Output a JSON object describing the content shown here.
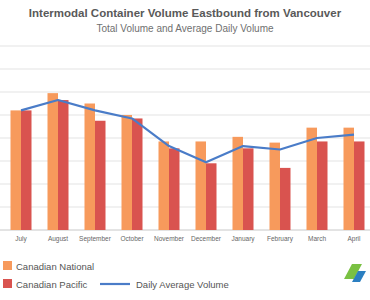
{
  "chart_data": {
    "type": "bar",
    "title": "Intermodal Container Volume Eastbound from Vancouver",
    "subtitle": "Total Volume and Average Daily Volume",
    "categories": [
      "July",
      "August",
      "September",
      "October",
      "November",
      "December",
      "January",
      "February",
      "March",
      "April"
    ],
    "series": [
      {
        "name": "Canadian National",
        "color": "#f79a5c",
        "values": [
          5.2,
          5.95,
          5.5,
          5.0,
          3.85,
          3.85,
          4.05,
          3.8,
          4.45,
          4.45
        ]
      },
      {
        "name": "Canadian Pacific",
        "color": "#d9534f",
        "values": [
          5.2,
          5.65,
          4.75,
          4.85,
          3.55,
          2.9,
          3.55,
          2.7,
          3.85,
          3.85
        ]
      },
      {
        "name": "Daily Average Volume",
        "type": "line",
        "color": "#4a7cc8",
        "values": [
          5.2,
          5.65,
          5.2,
          4.85,
          3.65,
          2.95,
          3.65,
          3.5,
          4.0,
          4.15
        ]
      }
    ],
    "ylim": [
      0,
      8
    ],
    "yticks": [
      0,
      1,
      2,
      3,
      4,
      5,
      6,
      7,
      8
    ],
    "grid": true,
    "tick_labels": "x",
    "legend": "bottom-left"
  }
}
